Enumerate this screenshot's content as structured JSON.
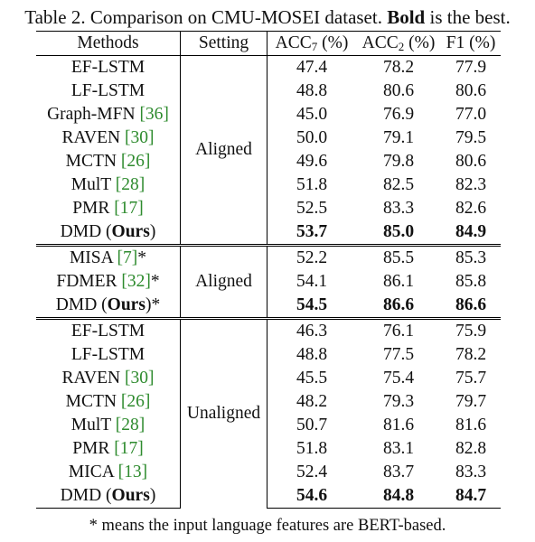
{
  "caption": {
    "prefix": "Table 2. Comparison on CMU-MOSEI dataset. ",
    "bold": "Bold",
    "suffix": " is the best."
  },
  "headers": {
    "methods": "Methods",
    "setting": "Setting",
    "acc7": "ACC",
    "acc7_sub": "7",
    "acc7_unit": " (%)",
    "acc2": "ACC",
    "acc2_sub": "2",
    "acc2_unit": " (%)",
    "f1": "F1 (%)"
  },
  "groups": [
    {
      "setting": "Aligned",
      "rows": [
        {
          "method": "EF-LSTM",
          "cite": "",
          "suffix": "",
          "acc7": "47.4",
          "acc2": "78.2",
          "f1": "77.9",
          "bold": false
        },
        {
          "method": "LF-LSTM",
          "cite": "",
          "suffix": "",
          "acc7": "48.8",
          "acc2": "80.6",
          "f1": "80.6",
          "bold": false
        },
        {
          "method": "Graph-MFN ",
          "cite": "[36]",
          "suffix": "",
          "acc7": "45.0",
          "acc2": "76.9",
          "f1": "77.0",
          "bold": false
        },
        {
          "method": "RAVEN ",
          "cite": "[30]",
          "suffix": "",
          "acc7": "50.0",
          "acc2": "79.1",
          "f1": "79.5",
          "bold": false
        },
        {
          "method": "MCTN ",
          "cite": "[26]",
          "suffix": "",
          "acc7": "49.6",
          "acc2": "79.8",
          "f1": "80.6",
          "bold": false
        },
        {
          "method": "MulT ",
          "cite": "[28]",
          "suffix": "",
          "acc7": "51.8",
          "acc2": "82.5",
          "f1": "82.3",
          "bold": false
        },
        {
          "method": "PMR ",
          "cite": "[17]",
          "suffix": "",
          "acc7": "52.5",
          "acc2": "83.3",
          "f1": "82.6",
          "bold": false
        },
        {
          "method": "DMD (",
          "method_bold": "Ours",
          "close": ")",
          "cite": "",
          "suffix": "",
          "acc7": "53.7",
          "acc2": "85.0",
          "f1": "84.9",
          "bold": true
        }
      ]
    },
    {
      "setting": "Aligned",
      "rows": [
        {
          "method": "MISA ",
          "cite": "[7]",
          "suffix": "*",
          "acc7": "52.2",
          "acc2": "85.5",
          "f1": "85.3",
          "bold": false
        },
        {
          "method": "FDMER ",
          "cite": "[32]",
          "suffix": "*",
          "acc7": "54.1",
          "acc2": "86.1",
          "f1": "85.8",
          "bold": false
        },
        {
          "method": "DMD (",
          "method_bold": "Ours",
          "close": ")",
          "cite": "",
          "suffix": "*",
          "acc7": "54.5",
          "acc2": "86.6",
          "f1": "86.6",
          "bold": true
        }
      ]
    },
    {
      "setting": "Unaligned",
      "rows": [
        {
          "method": "EF-LSTM",
          "cite": "",
          "suffix": "",
          "acc7": "46.3",
          "acc2": "76.1",
          "f1": "75.9",
          "bold": false
        },
        {
          "method": "LF-LSTM",
          "cite": "",
          "suffix": "",
          "acc7": "48.8",
          "acc2": "77.5",
          "f1": "78.2",
          "bold": false
        },
        {
          "method": "RAVEN ",
          "cite": "[30]",
          "suffix": "",
          "acc7": "45.5",
          "acc2": "75.4",
          "f1": "75.7",
          "bold": false
        },
        {
          "method": "MCTN ",
          "cite": "[26]",
          "suffix": "",
          "acc7": "48.2",
          "acc2": "79.3",
          "f1": "79.7",
          "bold": false
        },
        {
          "method": "MulT ",
          "cite": "[28]",
          "suffix": "",
          "acc7": "50.7",
          "acc2": "81.6",
          "f1": "81.6",
          "bold": false
        },
        {
          "method": "PMR ",
          "cite": "[17]",
          "suffix": "",
          "acc7": "51.8",
          "acc2": "83.1",
          "f1": "82.8",
          "bold": false
        },
        {
          "method": "MICA ",
          "cite": "[13]",
          "suffix": "",
          "acc7": "52.4",
          "acc2": "83.7",
          "f1": "83.3",
          "bold": false
        },
        {
          "method": "DMD (",
          "method_bold": "Ours",
          "close": ")",
          "cite": "",
          "suffix": "",
          "acc7": "54.6",
          "acc2": "84.8",
          "f1": "84.7",
          "bold": true
        }
      ]
    }
  ],
  "footnote": "* means the input language features are BERT-based.",
  "colors": {
    "citation": "#2e8b2e",
    "text": "#111111"
  }
}
